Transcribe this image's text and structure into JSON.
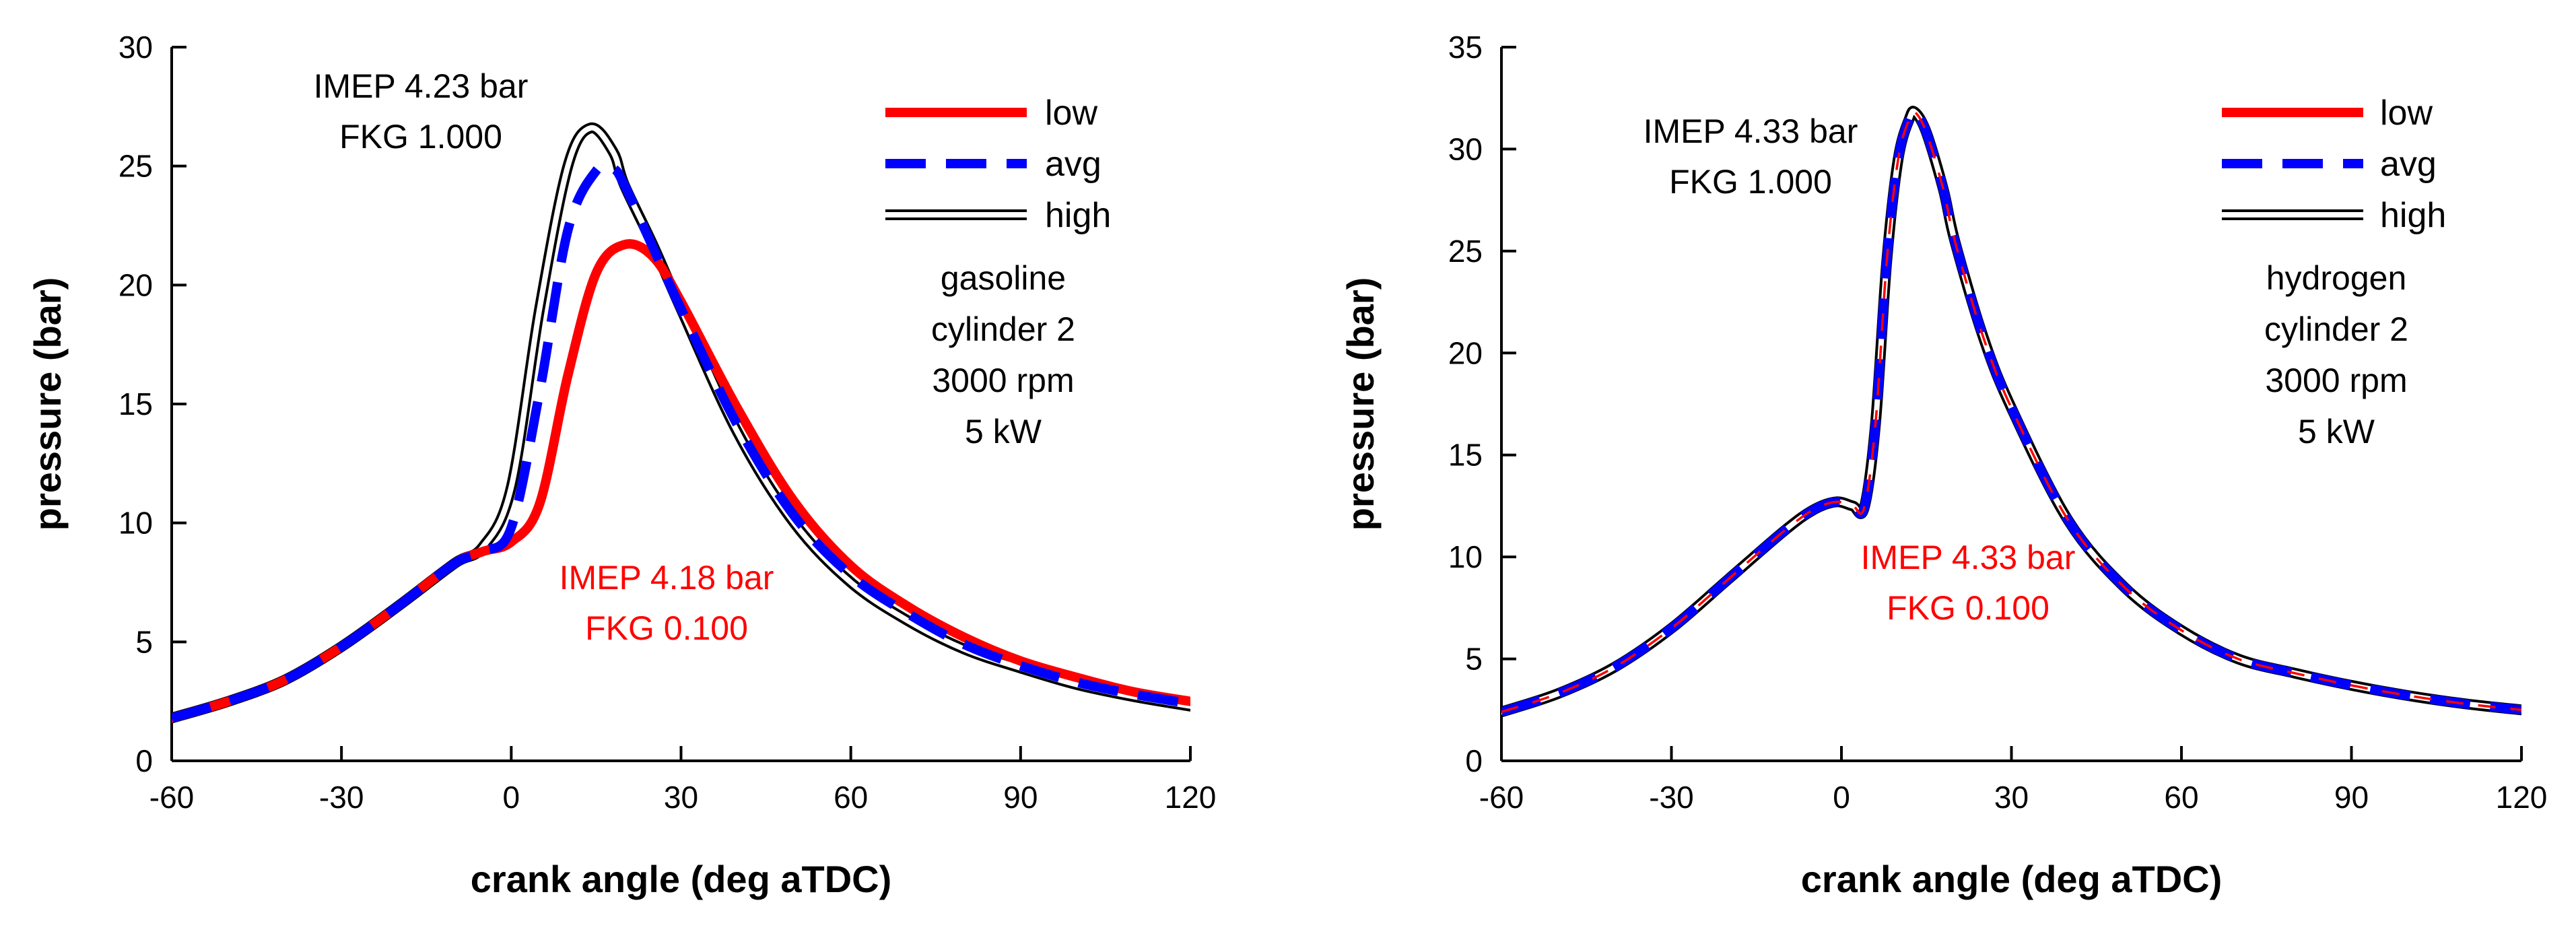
{
  "chart_data": [
    {
      "type": "line",
      "xlabel": "crank angle (deg aTDC)",
      "ylabel": "pressure (bar)",
      "xlim": [
        -60,
        120
      ],
      "ylim": [
        0,
        30
      ],
      "xticks": [
        "-60",
        "-30",
        "0",
        "30",
        "60",
        "90",
        "120"
      ],
      "yticks": [
        "0",
        "5",
        "10",
        "15",
        "20",
        "25",
        "30"
      ],
      "grid": false,
      "legend": "top-right",
      "colors": {
        "low": "#ff0000",
        "avg": "#0000ff",
        "high": "#000000",
        "red_text": "#ff0000"
      },
      "annotations": {
        "high": [
          "IMEP 4.23 bar",
          "FKG 1.000"
        ],
        "low": [
          "IMEP 4.18 bar",
          "FKG 0.100"
        ],
        "conditions": [
          "gasoline",
          "cylinder 2",
          "3000 rpm",
          "5 kW"
        ]
      },
      "series": [
        {
          "name": "low",
          "x": [
            -60,
            -50,
            -40,
            -30,
            -20,
            -10,
            -5,
            0,
            5,
            10,
            15,
            20,
            25,
            30,
            40,
            50,
            60,
            70,
            80,
            90,
            100,
            110,
            120
          ],
          "y": [
            1.8,
            2.5,
            3.4,
            4.8,
            6.5,
            8.3,
            8.8,
            9.2,
            10.8,
            16.2,
            20.5,
            21.7,
            21.2,
            19.3,
            14.8,
            10.9,
            8.2,
            6.5,
            5.2,
            4.2,
            3.5,
            2.9,
            2.5
          ]
        },
        {
          "name": "avg",
          "x": [
            -60,
            -50,
            -40,
            -30,
            -20,
            -10,
            -5,
            0,
            5,
            10,
            15,
            18,
            20,
            25,
            30,
            40,
            50,
            60,
            70,
            80,
            90,
            100,
            110,
            120
          ],
          "y": [
            1.8,
            2.5,
            3.4,
            4.8,
            6.5,
            8.3,
            8.8,
            9.8,
            15.5,
            22.3,
            24.8,
            24.9,
            24.2,
            21.6,
            19.0,
            14.1,
            10.3,
            7.8,
            6.2,
            4.9,
            4.0,
            3.3,
            2.8,
            2.4
          ]
        },
        {
          "name": "high",
          "x": [
            -60,
            -50,
            -40,
            -30,
            -20,
            -10,
            -5,
            0,
            5,
            10,
            14,
            18,
            20,
            25,
            30,
            40,
            50,
            60,
            70,
            80,
            90,
            100,
            110,
            120
          ],
          "y": [
            1.8,
            2.5,
            3.4,
            4.8,
            6.5,
            8.3,
            9.0,
            11.5,
            19.0,
            25.0,
            26.6,
            25.6,
            24.2,
            21.7,
            19.0,
            13.8,
            10.0,
            7.5,
            5.9,
            4.7,
            3.9,
            3.2,
            2.7,
            2.3
          ]
        }
      ]
    },
    {
      "type": "line",
      "xlabel": "crank angle (deg aTDC)",
      "ylabel": "pressure (bar)",
      "xlim": [
        -60,
        120
      ],
      "ylim": [
        0,
        35
      ],
      "xticks": [
        "-60",
        "-30",
        "0",
        "30",
        "60",
        "90",
        "120"
      ],
      "yticks": [
        "0",
        "5",
        "10",
        "15",
        "20",
        "25",
        "30",
        "35"
      ],
      "grid": false,
      "legend": "top-right",
      "colors": {
        "low": "#ff0000",
        "avg": "#0000ff",
        "high": "#000000",
        "red_text": "#ff0000"
      },
      "annotations": {
        "high": [
          "IMEP 4.33 bar",
          "FKG 1.000"
        ],
        "low": [
          "IMEP 4.33 bar",
          "FKG 0.100"
        ],
        "conditions": [
          "hydrogen",
          "cylinder 2",
          "3000 rpm",
          "5 kW"
        ]
      },
      "series": [
        {
          "name": "low",
          "x": [
            -60,
            -50,
            -40,
            -30,
            -20,
            -10,
            -5,
            -1,
            2,
            4,
            6,
            8,
            10,
            12,
            13,
            15,
            18,
            20,
            25,
            30,
            40,
            50,
            60,
            70,
            80,
            90,
            100,
            110,
            120
          ],
          "y": [
            2.4,
            3.3,
            4.6,
            6.5,
            8.9,
            11.3,
            12.3,
            12.7,
            12.5,
            12.4,
            16.5,
            24.5,
            29.5,
            31.5,
            31.8,
            30.8,
            28.0,
            25.5,
            20.8,
            17.3,
            11.8,
            8.5,
            6.4,
            5.0,
            4.3,
            3.7,
            3.2,
            2.8,
            2.5
          ]
        },
        {
          "name": "avg",
          "x": [
            -60,
            -50,
            -40,
            -30,
            -20,
            -10,
            -5,
            -1,
            2,
            4,
            6,
            8,
            10,
            12,
            13,
            15,
            18,
            20,
            25,
            30,
            40,
            50,
            60,
            70,
            80,
            90,
            100,
            110,
            120
          ],
          "y": [
            2.4,
            3.3,
            4.6,
            6.5,
            8.9,
            11.3,
            12.3,
            12.7,
            12.5,
            12.4,
            16.5,
            24.5,
            29.5,
            31.5,
            31.8,
            30.8,
            28.0,
            25.5,
            20.8,
            17.3,
            11.8,
            8.5,
            6.4,
            5.0,
            4.3,
            3.7,
            3.2,
            2.8,
            2.5
          ]
        },
        {
          "name": "high",
          "x": [
            -60,
            -50,
            -40,
            -30,
            -20,
            -10,
            -5,
            -1,
            2,
            4,
            6,
            8,
            10,
            12,
            13,
            15,
            18,
            20,
            25,
            30,
            40,
            50,
            60,
            70,
            80,
            90,
            100,
            110,
            120
          ],
          "y": [
            2.4,
            3.3,
            4.6,
            6.5,
            8.9,
            11.3,
            12.3,
            12.7,
            12.5,
            12.4,
            16.5,
            24.5,
            29.5,
            31.5,
            31.8,
            30.8,
            28.0,
            25.5,
            20.8,
            17.3,
            11.8,
            8.5,
            6.4,
            5.0,
            4.3,
            3.7,
            3.2,
            2.8,
            2.5
          ]
        }
      ]
    }
  ]
}
